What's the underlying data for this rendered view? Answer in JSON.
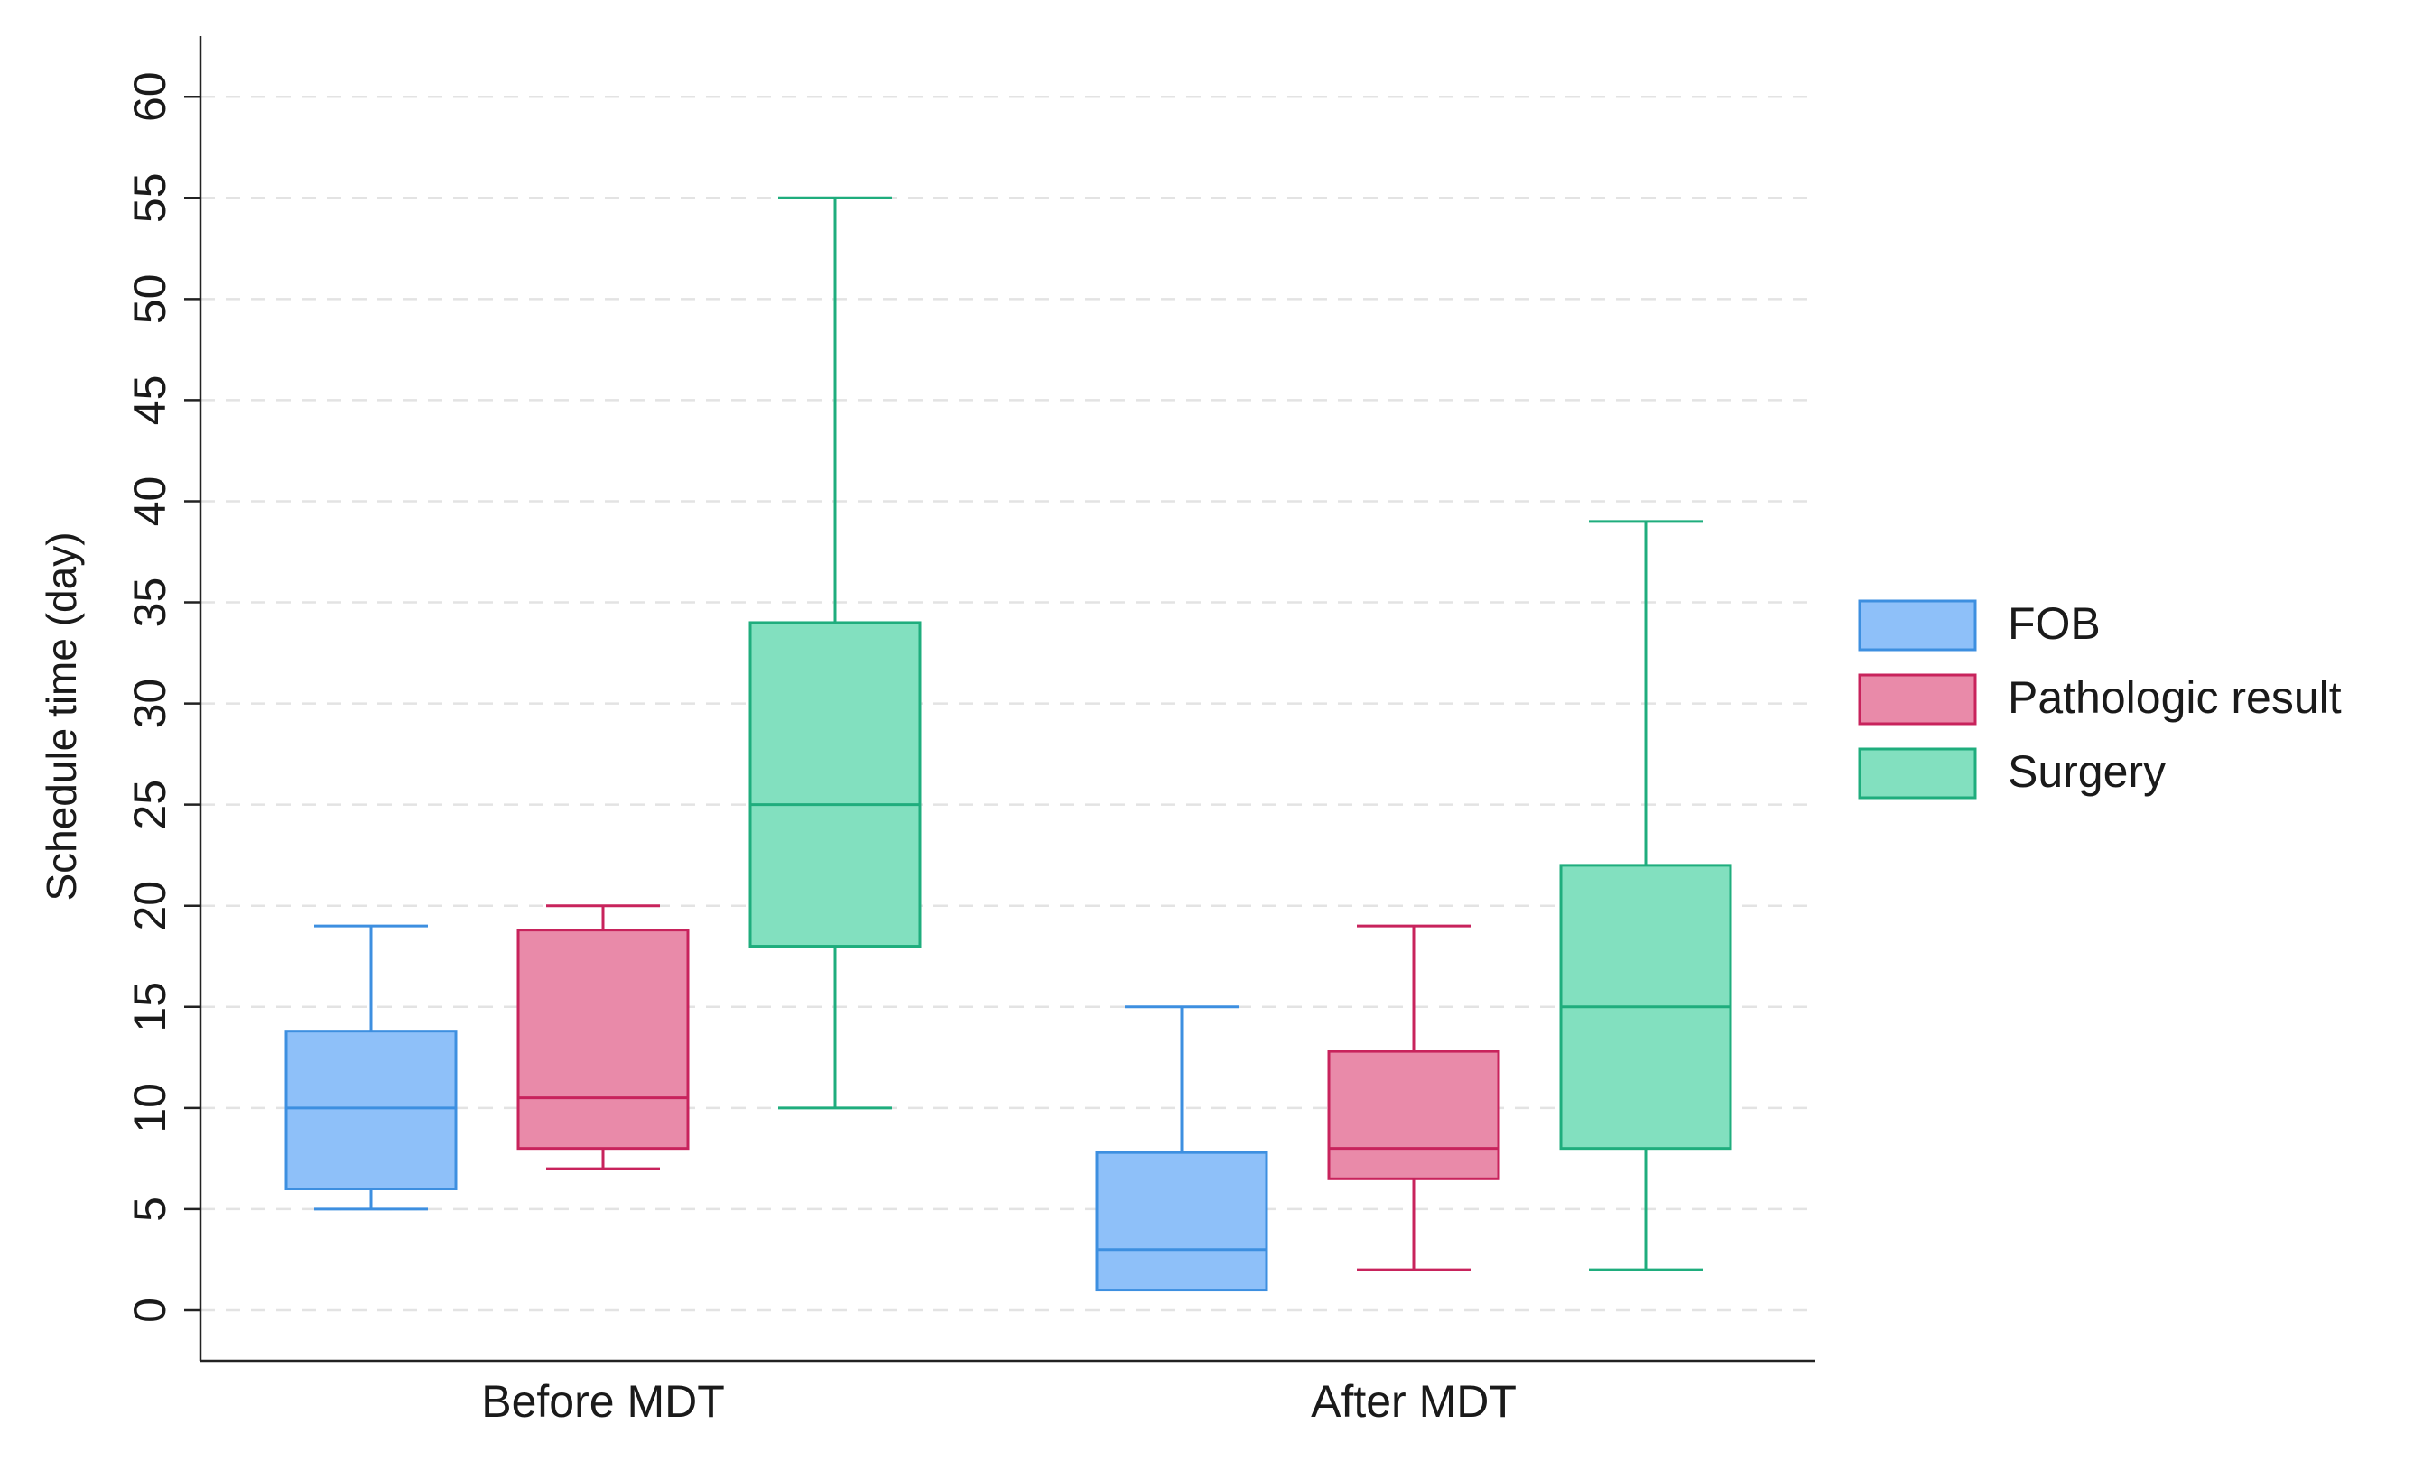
{
  "chart_data": {
    "type": "boxplot",
    "title": "",
    "xlabel": "",
    "ylabel": "Schedule time (day)",
    "ylim": [
      -2.5,
      63
    ],
    "yticks": [
      0,
      5,
      10,
      15,
      20,
      25,
      30,
      35,
      40,
      45,
      50,
      55,
      60
    ],
    "grid": true,
    "legend_position": "right",
    "categories": [
      "Before MDT",
      "After MDT"
    ],
    "series": [
      {
        "name": "FOB",
        "fill": "#8ec0f9",
        "stroke": "#3d8fe0",
        "boxes": [
          {
            "min": 5,
            "q1": 6,
            "median": 10,
            "q3": 13.8,
            "max": 19
          },
          {
            "min": 1,
            "q1": 1,
            "median": 3,
            "q3": 7.8,
            "max": 15
          }
        ]
      },
      {
        "name": "Pathologic result",
        "fill": "#e98aa9",
        "stroke": "#c8235c",
        "boxes": [
          {
            "min": 7,
            "q1": 8,
            "median": 10.5,
            "q3": 18.8,
            "max": 20
          },
          {
            "min": 2,
            "q1": 6.5,
            "median": 8,
            "q3": 12.8,
            "max": 19
          }
        ]
      },
      {
        "name": "Surgery",
        "fill": "#82e0bf",
        "stroke": "#1fad7d",
        "boxes": [
          {
            "min": 10,
            "q1": 18,
            "median": 25,
            "q3": 34,
            "max": 55
          },
          {
            "min": 2,
            "q1": 8,
            "median": 15,
            "q3": 22,
            "max": 39
          }
        ]
      }
    ]
  }
}
